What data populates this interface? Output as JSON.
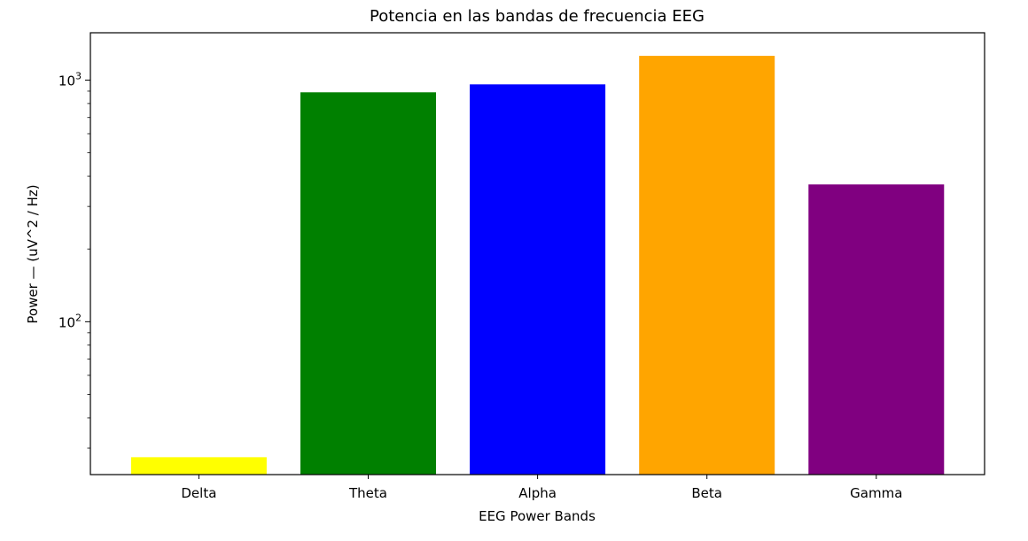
{
  "chart_data": {
    "type": "bar",
    "title": "Potencia en las bandas de frecuencia EEG",
    "xlabel": "EEG Power Bands",
    "ylabel": "Power — (uV^2 / Hz)",
    "yscale": "log",
    "ylim": [
      23.3,
      1570
    ],
    "yticks": [
      {
        "value": 100,
        "base": "10",
        "exp": "2"
      },
      {
        "value": 1000,
        "base": "10",
        "exp": "3"
      }
    ],
    "categories": [
      "Delta",
      "Theta",
      "Alpha",
      "Beta",
      "Gamma"
    ],
    "values": [
      27.5,
      890,
      960,
      1260,
      370
    ],
    "colors": [
      "#ffff00",
      "#008000",
      "#0000ff",
      "#ffa500",
      "#800080"
    ],
    "grid": false,
    "legend": "none"
  }
}
